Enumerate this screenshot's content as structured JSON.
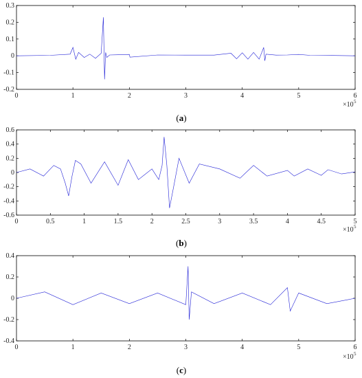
{
  "chart_data": [
    {
      "type": "line",
      "caption": "(a)",
      "caption_letter": "a",
      "x_exponent_label": "×10",
      "x_exponent": "5",
      "xlim": [
        0,
        600000
      ],
      "ylim": [
        -0.2,
        0.3
      ],
      "xticks": [
        0,
        100000,
        200000,
        300000,
        400000,
        500000,
        600000
      ],
      "xtick_labels": [
        "0",
        "1",
        "2",
        "3",
        "4",
        "5",
        "6"
      ],
      "yticks": [
        -0.2,
        -0.1,
        0,
        0.1,
        0.2,
        0.3
      ],
      "ytick_labels": [
        "-0.2",
        "-0.1",
        "0",
        "0.1",
        "0.2",
        "0.3"
      ],
      "series": [
        {
          "x": [
            0,
            60000,
            95000,
            100000,
            105000,
            110000,
            120000,
            130000,
            140000,
            150000,
            154000,
            156000,
            158000,
            160000,
            165000,
            180000,
            200000,
            201000,
            250000,
            300000,
            350000,
            380000,
            390000,
            400000,
            410000,
            420000,
            430000,
            438000,
            440000,
            442000,
            460000,
            480000,
            500000,
            520000,
            560000,
            600000
          ],
          "y": [
            0,
            0.003,
            0.01,
            0.05,
            -0.02,
            0.02,
            -0.01,
            0.01,
            -0.015,
            0.015,
            0.23,
            -0.14,
            0.02,
            -0.01,
            0.005,
            0.006,
            0.008,
            -0.008,
            0.005,
            0.004,
            0.004,
            0.015,
            -0.018,
            0.018,
            -0.02,
            0.02,
            -0.02,
            0.05,
            -0.03,
            0.01,
            0.004,
            0.005,
            0.008,
            0.003,
            0.002,
            0
          ]
        }
      ]
    },
    {
      "type": "line",
      "caption": "(b)",
      "caption_letter": "b",
      "x_exponent_label": "×10",
      "x_exponent": "5",
      "xlim": [
        0,
        500000
      ],
      "ylim": [
        -0.6,
        0.6
      ],
      "xticks": [
        0,
        50000,
        100000,
        150000,
        200000,
        250000,
        300000,
        350000,
        400000,
        450000,
        500000
      ],
      "xtick_labels": [
        "0",
        "0.5",
        "1",
        "1.5",
        "2",
        "2.5",
        "3",
        "3.5",
        "4",
        "4.5",
        "5"
      ],
      "yticks": [
        -0.6,
        -0.4,
        -0.2,
        0,
        0.2,
        0.4,
        0.6
      ],
      "ytick_labels": [
        "-0.6",
        "-0.4",
        "-0.2",
        "0",
        "0.2",
        "0.4",
        "0.6"
      ],
      "series": [
        {
          "x": [
            0,
            20000,
            40000,
            55000,
            65000,
            72000,
            77000,
            82000,
            87000,
            95000,
            110000,
            130000,
            150000,
            165000,
            180000,
            200000,
            210000,
            215000,
            218000,
            222000,
            226000,
            232000,
            240000,
            255000,
            270000,
            300000,
            330000,
            350000,
            370000,
            400000,
            410000,
            430000,
            450000,
            460000,
            480000,
            500000
          ],
          "y": [
            0,
            0.05,
            -0.05,
            0.1,
            0.05,
            -0.15,
            -0.33,
            -0.05,
            0.17,
            0.12,
            -0.15,
            0.15,
            -0.18,
            0.18,
            -0.1,
            0.05,
            -0.1,
            0.1,
            0.5,
            0.1,
            -0.5,
            -0.2,
            0.2,
            -0.15,
            0.12,
            0.05,
            -0.08,
            0.1,
            -0.05,
            0.03,
            -0.05,
            0.05,
            -0.04,
            0.04,
            -0.02,
            0.01
          ]
        }
      ]
    },
    {
      "type": "line",
      "caption": "(c)",
      "caption_letter": "c",
      "x_exponent_label": "×10",
      "x_exponent": "5",
      "xlim": [
        0,
        600000
      ],
      "ylim": [
        -0.4,
        0.4
      ],
      "xticks": [
        0,
        100000,
        200000,
        300000,
        400000,
        500000,
        600000
      ],
      "xtick_labels": [
        "0",
        "1",
        "2",
        "3",
        "4",
        "5",
        "6"
      ],
      "yticks": [
        -0.4,
        -0.2,
        0,
        0.2,
        0.4
      ],
      "ytick_labels": [
        "-0.4",
        "-0.2",
        "0",
        "0.2",
        "0.4"
      ],
      "series": [
        {
          "x": [
            0,
            50000,
            100000,
            150000,
            200000,
            250000,
            300000,
            304000,
            306000,
            310000,
            350000,
            400000,
            450000,
            480000,
            485000,
            500000,
            550000,
            600000
          ],
          "y": [
            0,
            0.06,
            -0.06,
            0.05,
            -0.05,
            0.05,
            -0.06,
            0.3,
            -0.2,
            0.06,
            -0.05,
            0.05,
            -0.06,
            0.1,
            -0.12,
            0.05,
            -0.05,
            0
          ]
        }
      ]
    }
  ]
}
